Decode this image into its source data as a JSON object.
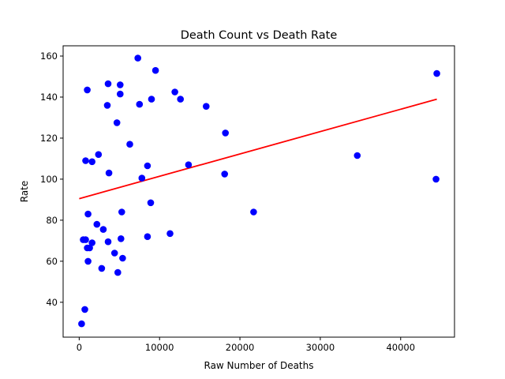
{
  "chart_data": {
    "type": "scatter",
    "title": "Death Count vs Death Rate",
    "xlabel": "Raw Number of Deaths",
    "ylabel": "Rate",
    "xlim": [
      -2000,
      46700
    ],
    "ylim": [
      23,
      165
    ],
    "xticks": [
      0,
      10000,
      20000,
      30000,
      40000
    ],
    "yticks": [
      40,
      60,
      80,
      100,
      120,
      140,
      160
    ],
    "grid": false,
    "legend": "none",
    "series": [
      {
        "type": "scatter",
        "color": "#0000ff",
        "points": [
          [
            7300,
            159
          ],
          [
            9500,
            153
          ],
          [
            44500,
            151.5
          ],
          [
            1000,
            143.5
          ],
          [
            3600,
            146.5
          ],
          [
            5100,
            146
          ],
          [
            11900,
            142.5
          ],
          [
            5100,
            141.5
          ],
          [
            9000,
            139
          ],
          [
            12600,
            139
          ],
          [
            7500,
            136.5
          ],
          [
            3500,
            136
          ],
          [
            15800,
            135.5
          ],
          [
            4700,
            127.5
          ],
          [
            18200,
            122.5
          ],
          [
            6300,
            117
          ],
          [
            2400,
            112
          ],
          [
            34600,
            111.5
          ],
          [
            800,
            109
          ],
          [
            1600,
            108.5
          ],
          [
            13600,
            107
          ],
          [
            8500,
            106.5
          ],
          [
            3700,
            103
          ],
          [
            18100,
            102.5
          ],
          [
            7800,
            100.5
          ],
          [
            44400,
            100
          ],
          [
            8900,
            88.5
          ],
          [
            5300,
            84
          ],
          [
            21700,
            84
          ],
          [
            1100,
            83
          ],
          [
            2200,
            78
          ],
          [
            3000,
            75.5
          ],
          [
            11300,
            73.5
          ],
          [
            8500,
            72
          ],
          [
            5200,
            71
          ],
          [
            500,
            70.5
          ],
          [
            800,
            70.5
          ],
          [
            3600,
            69.5
          ],
          [
            1600,
            69
          ],
          [
            1000,
            66.5
          ],
          [
            1300,
            66.5
          ],
          [
            4400,
            64
          ],
          [
            5400,
            61.5
          ],
          [
            1100,
            60
          ],
          [
            2800,
            56.5
          ],
          [
            4800,
            54.5
          ],
          [
            700,
            36.5
          ],
          [
            300,
            29.5
          ]
        ]
      },
      {
        "type": "line",
        "color": "#ff0000",
        "points": [
          [
            0,
            90.5
          ],
          [
            44500,
            139
          ]
        ]
      }
    ]
  }
}
